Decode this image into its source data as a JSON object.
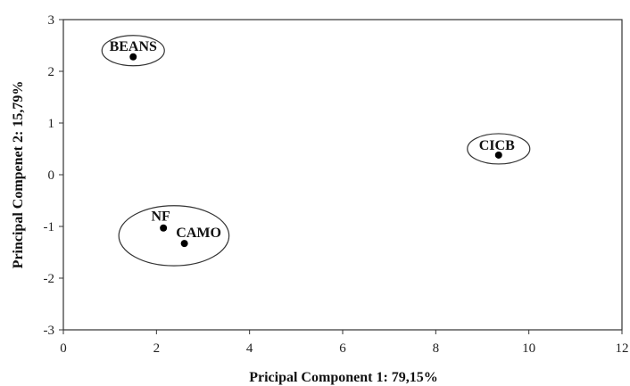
{
  "chart_data": {
    "type": "scatter",
    "title": "",
    "xlabel": "Pricipal Component 1: 79,15%",
    "ylabel": "Principal Compenet 2: 15,79%",
    "xlim": [
      0,
      12
    ],
    "ylim": [
      -3,
      3
    ],
    "xticks": [
      "0",
      "2",
      "4",
      "6",
      "8",
      "10",
      "12"
    ],
    "yticks": [
      "3",
      "2",
      "1",
      "0",
      "-1",
      "-2",
      "-3"
    ],
    "grid": false,
    "legend": "none",
    "points": [
      {
        "label": "BEANS",
        "x": 1.5,
        "y": 2.28
      },
      {
        "label": "CICB",
        "x": 9.35,
        "y": 0.38
      },
      {
        "label": "NF",
        "x": 2.15,
        "y": -1.03
      },
      {
        "label": "CAMO",
        "x": 2.6,
        "y": -1.33
      }
    ],
    "groups": [
      {
        "members": [
          "BEANS"
        ]
      },
      {
        "members": [
          "CICB"
        ]
      },
      {
        "members": [
          "NF",
          "CAMO"
        ]
      }
    ],
    "colors": {
      "marker": "#000000",
      "axis": "#333333",
      "ellipse": "#333333"
    }
  }
}
